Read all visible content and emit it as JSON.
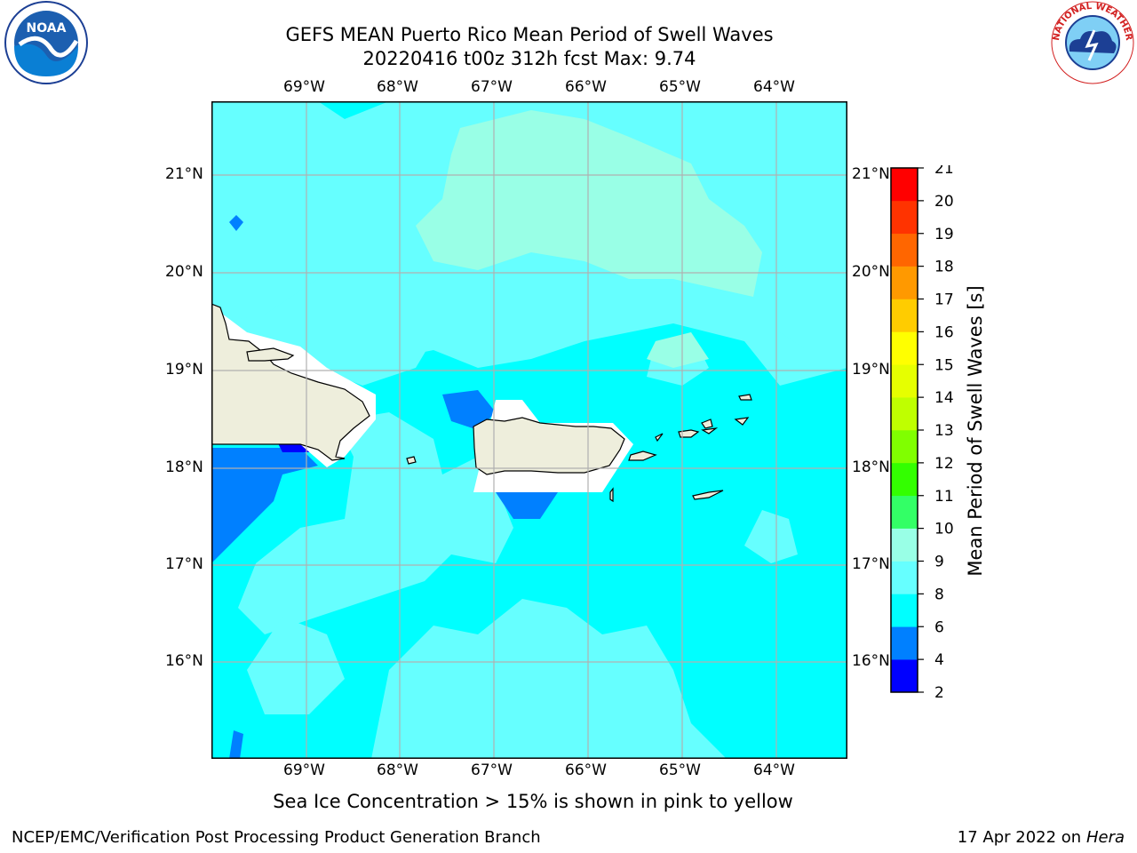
{
  "title": {
    "line1": "GEFS MEAN Puerto Rico Mean Period of Swell Waves",
    "line2": "20220416 t00z 312h fcst   Max: 9.74"
  },
  "axes": {
    "lon_labels": [
      "69°W",
      "68°W",
      "67°W",
      "66°W",
      "65°W",
      "64°W"
    ],
    "lat_labels": [
      "21°N",
      "20°N",
      "19°N",
      "18°N",
      "17°N",
      "16°N"
    ]
  },
  "colorbar": {
    "label": "Mean Period of Swell Waves [s]",
    "ticks": [
      "21",
      "20",
      "19",
      "18",
      "17",
      "16",
      "15",
      "14",
      "13",
      "12",
      "11",
      "10",
      "9",
      "8",
      "6",
      "4",
      "2"
    ],
    "colors": [
      "#0000ff",
      "#0080ff",
      "#00ffff",
      "#66ffff",
      "#99ffe6",
      "#33ff66",
      "#33ff00",
      "#80ff00",
      "#bfff00",
      "#e6ff00",
      "#ffff00",
      "#ffcc00",
      "#ff9900",
      "#ff6600",
      "#ff3300",
      "#ff0000"
    ]
  },
  "colors": {
    "ocean": "#00ffff",
    "light": "#66ffff",
    "pale": "#99ffe6",
    "deep": "#0080ff",
    "deepest": "#0000ff",
    "land": "#eeeedc",
    "grid": "#b0b0b0"
  },
  "note": "Sea Ice Concentration > 15% is shown in pink to yellow",
  "footer": {
    "left": "NCEP/EMC/Verification Post Processing Product Generation Branch",
    "date": "17 Apr 2022 on ",
    "machine": "Hera"
  },
  "logos": {
    "noaa_text": "NOAA",
    "nws_text": "NATIONAL WEATHER SERVICE"
  }
}
